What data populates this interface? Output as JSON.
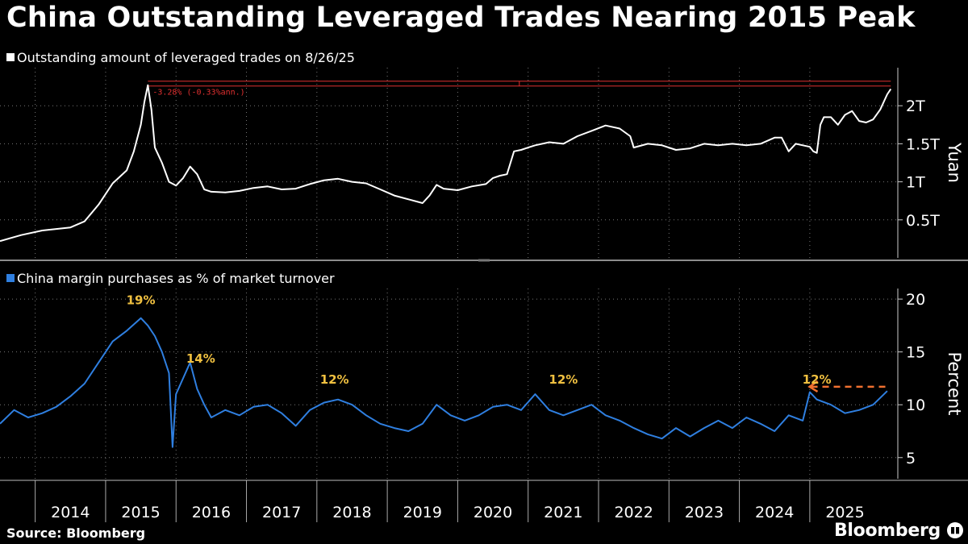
{
  "title": "China Outstanding Leveraged Trades Nearing 2015 Peak",
  "source": "Source: Bloomberg",
  "brand": "Bloomberg",
  "colors": {
    "top_series": "#ffffff",
    "bottom_series": "#2f7fe0",
    "annotation": "#f0c040",
    "ref_line": "#e03030",
    "dashed_arrow": "#f07030"
  },
  "chart_data": [
    {
      "type": "line",
      "legend": "Outstanding amount of leveraged trades on 8/26/25",
      "unit_label": "Yuan",
      "yticks": [
        {
          "value": 0.5,
          "label": "0.5T"
        },
        {
          "value": 1.0,
          "label": "1T"
        },
        {
          "value": 1.5,
          "label": "1.5T"
        },
        {
          "value": 2.0,
          "label": "2T"
        }
      ],
      "ylim": [
        0,
        2.5
      ],
      "reference_line": {
        "value": 2.27,
        "label": "-3.28% (-0.33%ann.)"
      },
      "series": [
        {
          "x": [
            2013.0,
            2013.3,
            2013.6,
            2013.8,
            2014.0,
            2014.2,
            2014.4,
            2014.6,
            2014.8,
            2014.9,
            2015.0,
            2015.05,
            2015.1,
            2015.15,
            2015.2,
            2015.25,
            2015.3,
            2015.4,
            2015.5,
            2015.6,
            2015.7,
            2015.8,
            2015.9,
            2016.0,
            2016.2,
            2016.4,
            2016.6,
            2016.8,
            2017.0,
            2017.2,
            2017.4,
            2017.6,
            2017.8,
            2018.0,
            2018.2,
            2018.4,
            2018.6,
            2018.8,
            2019.0,
            2019.1,
            2019.2,
            2019.3,
            2019.5,
            2019.7,
            2019.9,
            2020.0,
            2020.1,
            2020.2,
            2020.3,
            2020.4,
            2020.5,
            2020.6,
            2020.8,
            2021.0,
            2021.2,
            2021.4,
            2021.6,
            2021.8,
            2021.95,
            2022.0,
            2022.2,
            2022.4,
            2022.6,
            2022.8,
            2023.0,
            2023.2,
            2023.4,
            2023.6,
            2023.8,
            2024.0,
            2024.1,
            2024.2,
            2024.3,
            2024.4,
            2024.5,
            2024.55,
            2024.6,
            2024.65,
            2024.7,
            2024.8,
            2024.9,
            2025.0,
            2025.1,
            2025.2,
            2025.3,
            2025.4,
            2025.5,
            2025.6,
            2025.65
          ],
          "y": [
            0.22,
            0.3,
            0.36,
            0.38,
            0.4,
            0.48,
            0.7,
            0.98,
            1.15,
            1.4,
            1.75,
            2.05,
            2.27,
            1.95,
            1.45,
            1.35,
            1.25,
            1.0,
            0.95,
            1.05,
            1.2,
            1.1,
            0.9,
            0.87,
            0.86,
            0.88,
            0.92,
            0.94,
            0.9,
            0.91,
            0.97,
            1.02,
            1.04,
            1.0,
            0.98,
            0.9,
            0.82,
            0.77,
            0.72,
            0.82,
            0.96,
            0.91,
            0.89,
            0.94,
            0.97,
            1.05,
            1.08,
            1.1,
            1.4,
            1.42,
            1.45,
            1.48,
            1.52,
            1.5,
            1.6,
            1.67,
            1.74,
            1.7,
            1.6,
            1.45,
            1.5,
            1.48,
            1.42,
            1.44,
            1.5,
            1.48,
            1.5,
            1.48,
            1.5,
            1.58,
            1.58,
            1.4,
            1.5,
            1.48,
            1.46,
            1.4,
            1.38,
            1.75,
            1.85,
            1.85,
            1.75,
            1.88,
            1.93,
            1.8,
            1.78,
            1.82,
            1.95,
            2.15,
            2.22
          ]
        }
      ]
    },
    {
      "type": "line",
      "legend": "China margin purchases as % of market turnover",
      "unit_label": "Percent",
      "yticks": [
        5,
        10,
        15,
        20
      ],
      "ylim": [
        3,
        21
      ],
      "annotations": [
        {
          "x": 2015.0,
          "y": 19.5,
          "label": "19%"
        },
        {
          "x": 2015.85,
          "y": 14.0,
          "label": "14%"
        },
        {
          "x": 2017.75,
          "y": 12.0,
          "label": "12%"
        },
        {
          "x": 2021.0,
          "y": 12.0,
          "label": "12%"
        },
        {
          "x": 2024.6,
          "y": 12.0,
          "label": "12%"
        }
      ],
      "dashed_marker": {
        "x_start": 2024.45,
        "x_end": 2025.6,
        "y": 11.7
      },
      "series": [
        {
          "x": [
            2013.0,
            2013.2,
            2013.4,
            2013.6,
            2013.8,
            2014.0,
            2014.2,
            2014.4,
            2014.6,
            2014.8,
            2015.0,
            2015.1,
            2015.2,
            2015.3,
            2015.4,
            2015.45,
            2015.5,
            2015.6,
            2015.7,
            2015.8,
            2015.9,
            2016.0,
            2016.2,
            2016.4,
            2016.6,
            2016.8,
            2017.0,
            2017.2,
            2017.4,
            2017.6,
            2017.8,
            2018.0,
            2018.2,
            2018.4,
            2018.6,
            2018.8,
            2019.0,
            2019.2,
            2019.4,
            2019.6,
            2019.8,
            2020.0,
            2020.2,
            2020.4,
            2020.6,
            2020.8,
            2021.0,
            2021.2,
            2021.4,
            2021.6,
            2021.8,
            2022.0,
            2022.2,
            2022.4,
            2022.6,
            2022.8,
            2023.0,
            2023.2,
            2023.4,
            2023.6,
            2023.8,
            2024.0,
            2024.2,
            2024.4,
            2024.5,
            2024.6,
            2024.8,
            2025.0,
            2025.2,
            2025.4,
            2025.6
          ],
          "y": [
            8.2,
            9.5,
            8.8,
            9.2,
            9.8,
            10.8,
            12.0,
            14.0,
            16.0,
            17.0,
            18.2,
            17.5,
            16.5,
            15.0,
            13.0,
            6.0,
            11.0,
            12.5,
            14.0,
            11.5,
            10.0,
            8.8,
            9.5,
            9.0,
            9.8,
            10.0,
            9.2,
            8.0,
            9.5,
            10.2,
            10.5,
            10.0,
            9.0,
            8.2,
            7.8,
            7.5,
            8.2,
            10.0,
            9.0,
            8.5,
            9.0,
            9.8,
            10.0,
            9.5,
            11.0,
            9.5,
            9.0,
            9.5,
            10.0,
            9.0,
            8.5,
            7.8,
            7.2,
            6.8,
            7.8,
            7.0,
            7.8,
            8.5,
            7.8,
            8.8,
            8.2,
            7.5,
            9.0,
            8.5,
            11.2,
            10.5,
            10.0,
            9.2,
            9.5,
            10.0,
            11.3
          ]
        }
      ]
    }
  ],
  "x_axis": {
    "ticks": [
      "2014",
      "2015",
      "2016",
      "2017",
      "2018",
      "2019",
      "2020",
      "2021",
      "2022",
      "2023",
      "2024",
      "2025"
    ]
  }
}
